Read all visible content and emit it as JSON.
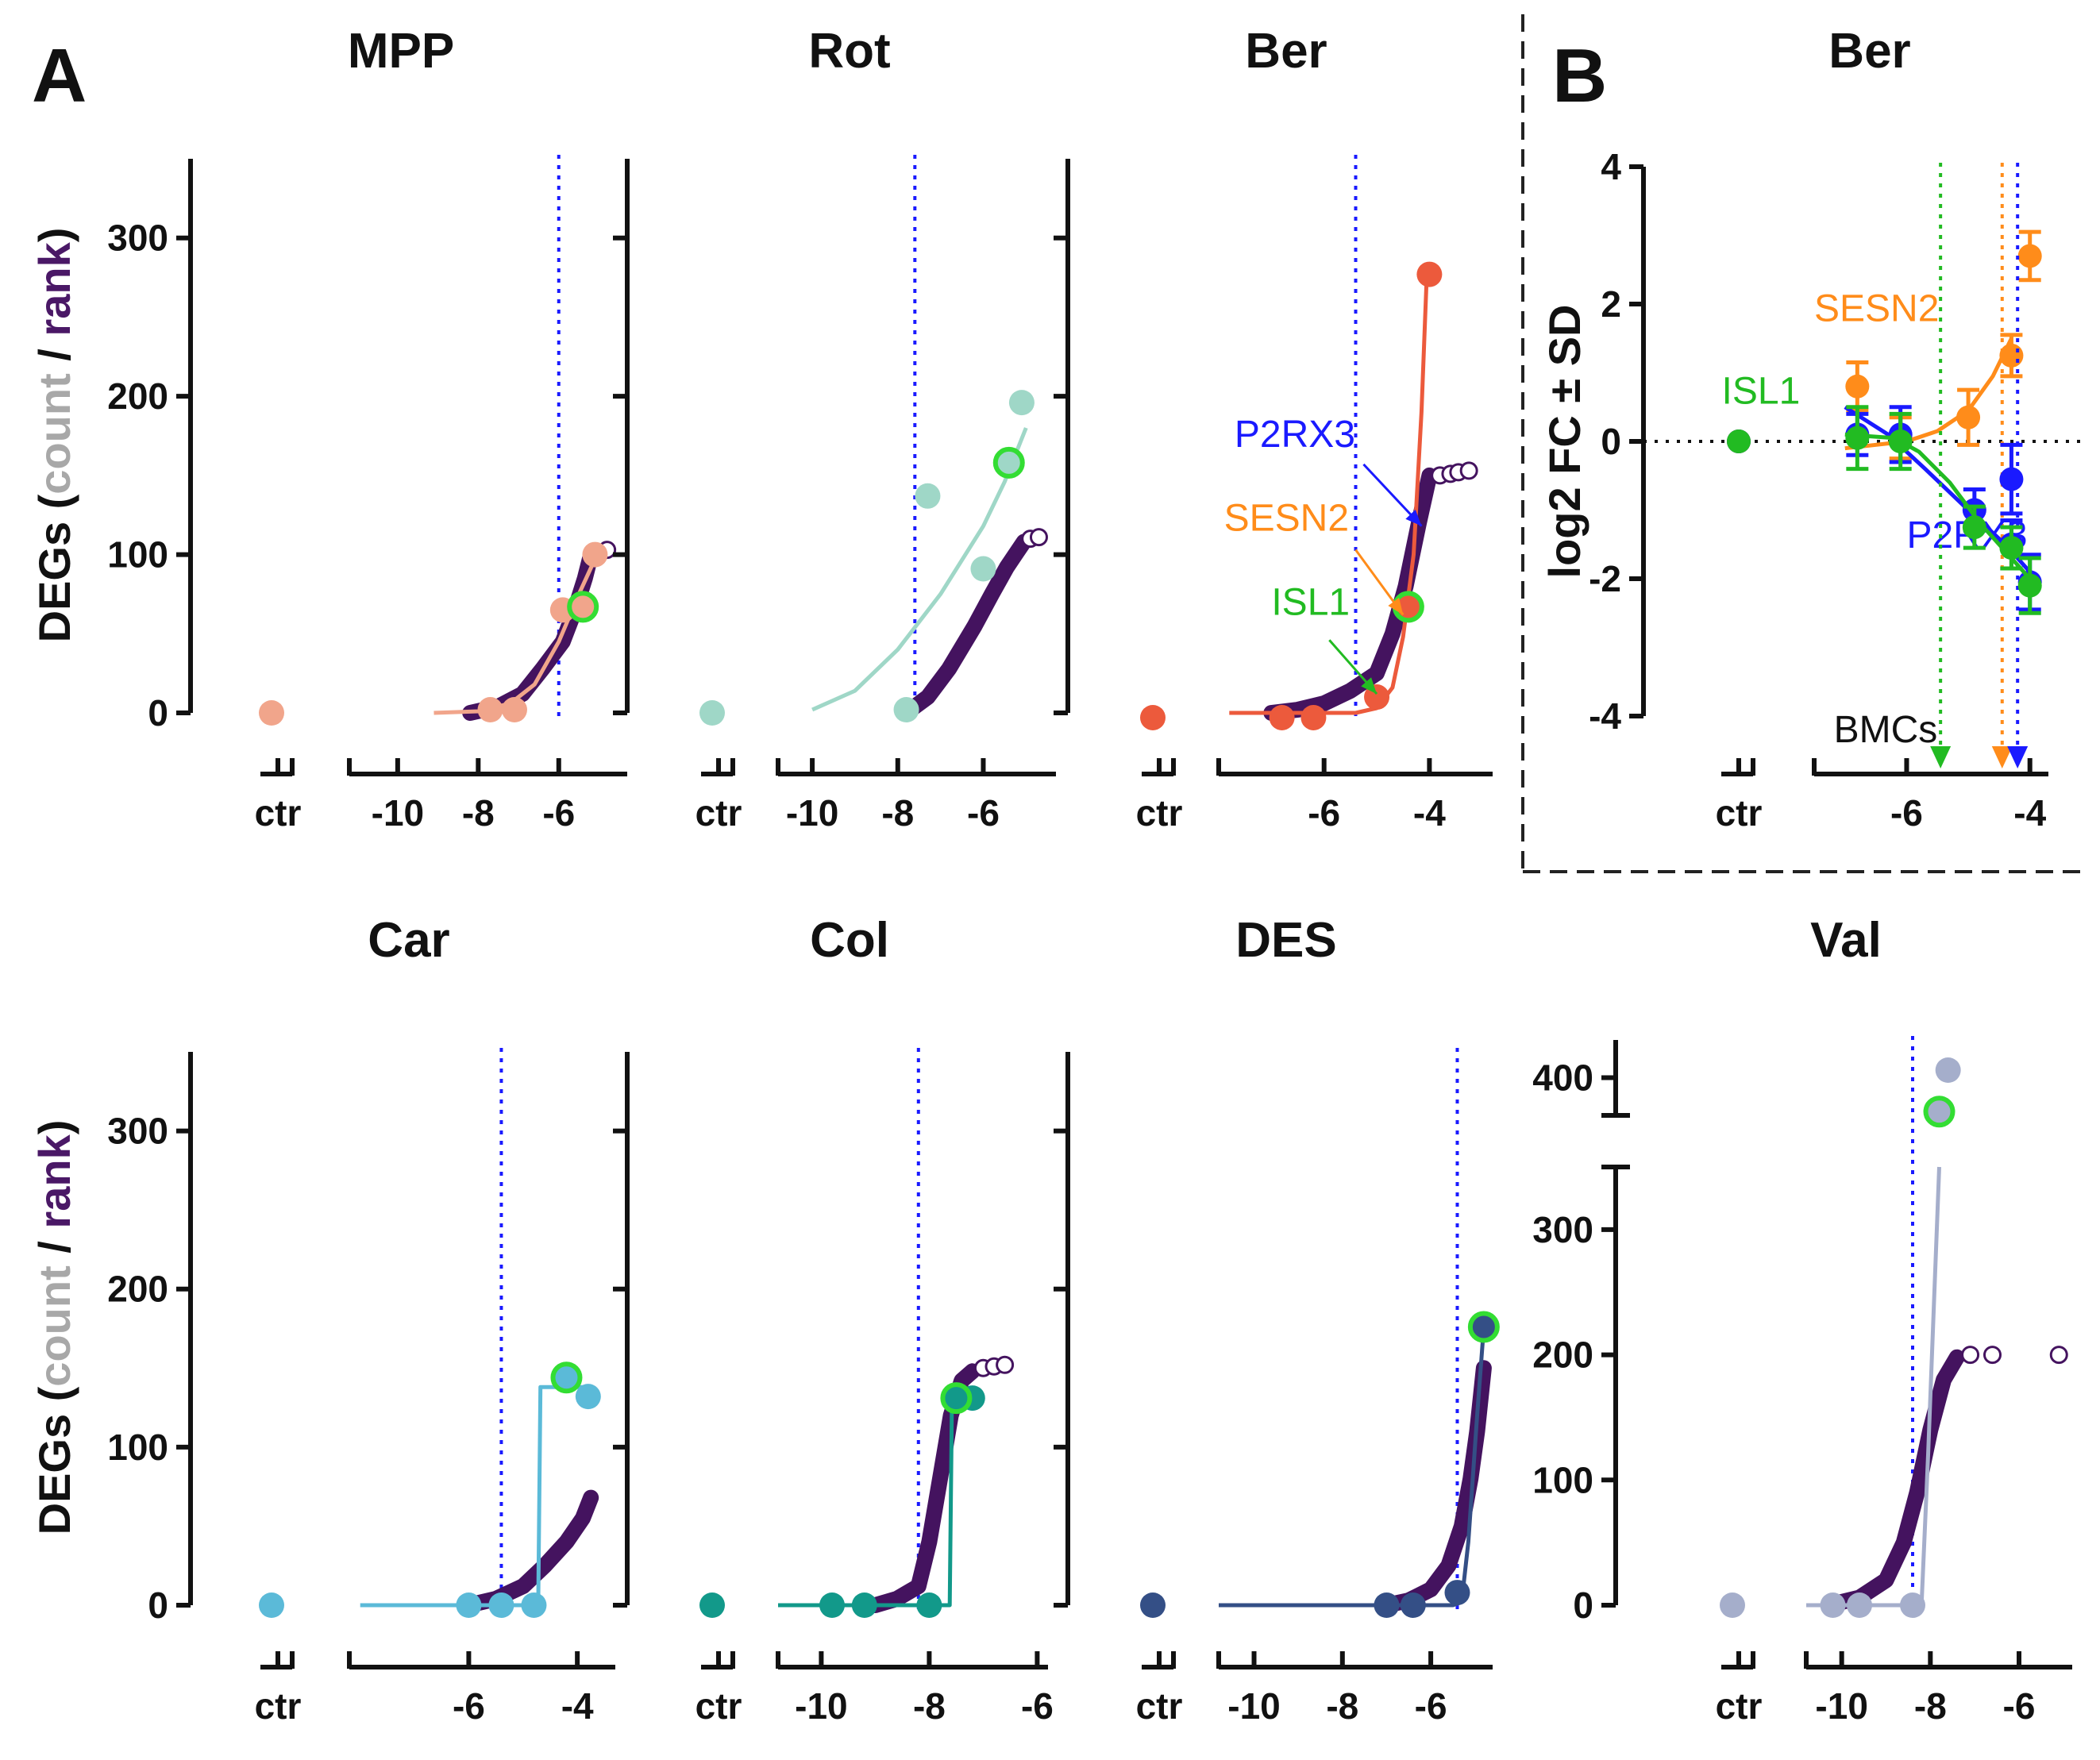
{
  "panel_labels": {
    "a": "A",
    "b": "B"
  },
  "y_label_parts": [
    "DEGs (",
    "count",
    " / ",
    "rank",
    ")"
  ],
  "y_label_colors": {
    "prefix": "#111111",
    "count": "#a8a8a8",
    "rank": "#4a1866"
  },
  "ctr_label": "ctr",
  "threshold_color": "#1a1aff",
  "rank_color": "#44135f",
  "highlight_color": "#33dd33",
  "chart_data": [
    {
      "type": "scatter",
      "title": "MPP",
      "color": "#f1a58b",
      "xlim": [
        -11.2,
        -4.3
      ],
      "ylim": [
        0,
        350
      ],
      "xticks": [
        -10,
        -8,
        -6
      ],
      "yticks": [
        0,
        100,
        200,
        300
      ],
      "y_tick_labels": true,
      "vline": -6.0,
      "ctr_value": 0,
      "points": [
        [
          -7.7,
          2
        ],
        [
          -7.1,
          2
        ],
        [
          -5.9,
          65
        ],
        [
          -5.1,
          100
        ]
      ],
      "highlight": [
        -5.4,
        67
      ],
      "curve": [
        [
          -9.1,
          0
        ],
        [
          -8.0,
          1
        ],
        [
          -7.2,
          6
        ],
        [
          -6.6,
          18
        ],
        [
          -6.0,
          45
        ],
        [
          -5.5,
          75
        ],
        [
          -5.05,
          100
        ]
      ],
      "rank_curve": [
        [
          -8.2,
          0
        ],
        [
          -7.5,
          4
        ],
        [
          -6.9,
          12
        ],
        [
          -6.4,
          28
        ],
        [
          -5.9,
          45
        ],
        [
          -5.6,
          65
        ],
        [
          -5.35,
          85
        ],
        [
          -5.2,
          100
        ]
      ],
      "rank_tail": [
        [
          -4.8,
          103
        ]
      ]
    },
    {
      "type": "scatter",
      "title": "Rot",
      "color": "#9fd7c7",
      "xlim": [
        -10.8,
        -4.3
      ],
      "ylim": [
        0,
        350
      ],
      "xticks": [
        -10,
        -8,
        -6
      ],
      "yticks": [
        0,
        100,
        200,
        300
      ],
      "y_tick_labels": false,
      "vline": -7.6,
      "ctr_value": 0,
      "points": [
        [
          -7.8,
          2
        ],
        [
          -7.3,
          137
        ],
        [
          -6.0,
          91
        ],
        [
          -5.1,
          196
        ]
      ],
      "highlight": [
        -5.4,
        158
      ],
      "curve": [
        [
          -10.0,
          2
        ],
        [
          -9.0,
          14
        ],
        [
          -8.0,
          40
        ],
        [
          -7.0,
          75
        ],
        [
          -6.0,
          118
        ],
        [
          -5.5,
          146
        ],
        [
          -5.0,
          180
        ]
      ],
      "rank_curve": [
        [
          -7.8,
          0
        ],
        [
          -7.3,
          10
        ],
        [
          -6.8,
          28
        ],
        [
          -6.2,
          55
        ],
        [
          -5.8,
          75
        ],
        [
          -5.45,
          92
        ],
        [
          -5.25,
          100
        ],
        [
          -5.05,
          108
        ]
      ],
      "rank_tail": [
        [
          -4.9,
          110
        ],
        [
          -4.7,
          111
        ]
      ]
    },
    {
      "type": "scatter",
      "title": "Ber",
      "color": "#ec5a3c",
      "xlim": [
        -8.0,
        -2.8
      ],
      "ylim": [
        0,
        350
      ],
      "xticks": [
        -6,
        -4
      ],
      "yticks": [
        0,
        100,
        200,
        300
      ],
      "y_tick_labels": false,
      "vline": -5.4,
      "ctr_value": -3,
      "points": [
        [
          -6.8,
          -3
        ],
        [
          -6.2,
          -3
        ],
        [
          -5.0,
          10
        ],
        [
          -4.4,
          66
        ],
        [
          -4.0,
          277
        ]
      ],
      "highlight": [
        -4.4,
        67
      ],
      "curve": [
        [
          -7.8,
          0
        ],
        [
          -5.4,
          0
        ],
        [
          -5.0,
          3
        ],
        [
          -4.7,
          16
        ],
        [
          -4.5,
          48
        ],
        [
          -4.3,
          100
        ],
        [
          -4.15,
          190
        ],
        [
          -4.05,
          277
        ]
      ],
      "rank_curve": [
        [
          -7.0,
          0
        ],
        [
          -6.5,
          2
        ],
        [
          -6.0,
          6
        ],
        [
          -5.5,
          14
        ],
        [
          -5.0,
          25
        ],
        [
          -4.7,
          50
        ],
        [
          -4.45,
          80
        ],
        [
          -4.2,
          120
        ],
        [
          -4.0,
          150
        ]
      ],
      "rank_tail": [
        [
          -3.8,
          150
        ],
        [
          -3.6,
          151
        ],
        [
          -3.45,
          152
        ],
        [
          -3.25,
          153
        ]
      ],
      "annotations": [
        {
          "label": "P2RX3",
          "color": "#1a1aff",
          "tx": -7.7,
          "ty": 168,
          "ax0": -5.25,
          "ay0": 157,
          "ax1": -4.15,
          "ay1": 118
        },
        {
          "label": "SESN2",
          "color": "#ff8c1a",
          "tx": -7.9,
          "ty": 115,
          "ax0": -5.4,
          "ay0": 103,
          "ax1": -4.5,
          "ay1": 62
        },
        {
          "label": "ISL1",
          "color": "#22bb22",
          "tx": -7.0,
          "ty": 62,
          "ax0": -5.9,
          "ay0": 46,
          "ax1": -5.0,
          "ay1": 12
        }
      ]
    },
    {
      "type": "scatter",
      "title": "Car",
      "color": "#5bbad8",
      "xlim": [
        -8.2,
        -3.3
      ],
      "ylim": [
        0,
        350
      ],
      "xticks": [
        -6,
        -4
      ],
      "yticks": [
        0,
        100,
        200,
        300
      ],
      "y_tick_labels": true,
      "vline": -5.4,
      "ctr_value": 0,
      "points": [
        [
          -6.0,
          0
        ],
        [
          -5.4,
          0
        ],
        [
          -4.8,
          0
        ],
        [
          -3.8,
          132
        ]
      ],
      "highlight": [
        -4.2,
        144
      ],
      "curve": [
        [
          -8.0,
          0
        ],
        [
          -4.72,
          0
        ],
        [
          -4.68,
          138
        ],
        [
          -3.8,
          138
        ]
      ],
      "rank_curve": [
        [
          -6.0,
          0
        ],
        [
          -5.5,
          4
        ],
        [
          -5.0,
          12
        ],
        [
          -4.6,
          25
        ],
        [
          -4.2,
          40
        ],
        [
          -3.9,
          55
        ],
        [
          -3.75,
          68
        ]
      ],
      "rank_tail": []
    },
    {
      "type": "scatter",
      "title": "Col",
      "color": "#12998a",
      "xlim": [
        -10.8,
        -5.8
      ],
      "ylim": [
        0,
        350
      ],
      "xticks": [
        -10,
        -8,
        -6
      ],
      "yticks": [
        0,
        100,
        200,
        300
      ],
      "y_tick_labels": false,
      "vline": -8.2,
      "ctr_value": 0,
      "points": [
        [
          -9.8,
          0
        ],
        [
          -9.2,
          0
        ],
        [
          -8.0,
          0
        ],
        [
          -7.2,
          131
        ]
      ],
      "highlight": [
        -7.5,
        131
      ],
      "curve": [
        [
          -10.8,
          0
        ],
        [
          -7.62,
          0
        ],
        [
          -7.58,
          131
        ],
        [
          -7.2,
          131
        ]
      ],
      "rank_curve": [
        [
          -9.0,
          0
        ],
        [
          -8.6,
          4
        ],
        [
          -8.2,
          12
        ],
        [
          -8.0,
          40
        ],
        [
          -7.8,
          80
        ],
        [
          -7.6,
          120
        ],
        [
          -7.4,
          142
        ],
        [
          -7.2,
          148
        ]
      ],
      "rank_tail": [
        [
          -7.0,
          150
        ],
        [
          -6.8,
          151
        ],
        [
          -6.6,
          152
        ]
      ]
    },
    {
      "type": "scatter",
      "title": "DES",
      "color": "#344f86",
      "xlim": [
        -10.8,
        -4.6
      ],
      "ylim": [
        0,
        350
      ],
      "xticks": [
        -10,
        -8,
        -6
      ],
      "yticks": [
        0,
        100,
        200,
        300
      ],
      "y_tick_labels": false,
      "vline": -5.4,
      "ctr_value": 0,
      "points": [
        [
          -7.0,
          0
        ],
        [
          -6.4,
          0
        ],
        [
          -5.4,
          8
        ],
        [
          -4.8,
          176
        ]
      ],
      "highlight": [
        -4.8,
        176
      ],
      "curve": [
        [
          -10.8,
          0
        ],
        [
          -5.5,
          0
        ],
        [
          -5.3,
          2
        ],
        [
          -5.15,
          40
        ],
        [
          -4.95,
          120
        ],
        [
          -4.8,
          176
        ]
      ],
      "rank_curve": [
        [
          -7.0,
          0
        ],
        [
          -6.5,
          3
        ],
        [
          -6.0,
          10
        ],
        [
          -5.6,
          25
        ],
        [
          -5.3,
          50
        ],
        [
          -5.1,
          80
        ],
        [
          -4.95,
          110
        ],
        [
          -4.8,
          150
        ]
      ],
      "rank_tail": []
    },
    {
      "type": "scatter",
      "title": "Val",
      "color": "#a5aecb",
      "xlim": [
        -10.8,
        -4.8
      ],
      "ylim": [
        0,
        430
      ],
      "xticks": [
        -10,
        -8,
        -6
      ],
      "yticks": [
        0,
        100,
        200,
        300,
        400
      ],
      "y_tick_labels": true,
      "vline": -8.4,
      "ctr_value": 0,
      "y_break": [
        350,
        370
      ],
      "points": [
        [
          -10.2,
          0
        ],
        [
          -9.6,
          0
        ],
        [
          -8.4,
          0
        ],
        [
          -7.6,
          406
        ]
      ],
      "highlight": [
        -7.8,
        373
      ],
      "curve": [
        [
          -10.8,
          0
        ],
        [
          -8.2,
          0
        ],
        [
          -8.05,
          120
        ],
        [
          -7.8,
          350
        ]
      ],
      "rank_curve": [
        [
          -10.3,
          0
        ],
        [
          -9.6,
          6
        ],
        [
          -9.0,
          20
        ],
        [
          -8.6,
          50
        ],
        [
          -8.3,
          90
        ],
        [
          -8.0,
          140
        ],
        [
          -7.7,
          180
        ],
        [
          -7.4,
          198
        ]
      ],
      "rank_tail": [
        [
          -7.1,
          200
        ],
        [
          -6.6,
          200
        ],
        [
          -5.1,
          200
        ]
      ]
    },
    {
      "type": "line",
      "title": "Ber",
      "xlim": [
        -7.5,
        -3.7
      ],
      "ylim": [
        -4,
        4
      ],
      "ylabel": "log2 FC ± SD",
      "xticks": [
        -6,
        -4
      ],
      "yticks": [
        -4,
        -2,
        0,
        2,
        4
      ],
      "bmc_label": "BMCs",
      "series": [
        {
          "name": "SESN2",
          "color": "#ff8c1a",
          "points": [
            [
              -6.8,
              0.8,
              0.35
            ],
            [
              -6.1,
              0.05,
              0.3
            ],
            [
              -5.0,
              0.35,
              0.4
            ],
            [
              -4.3,
              1.25,
              0.3
            ],
            [
              -4.0,
              2.7,
              0.35
            ]
          ],
          "ctr": [
            0,
            0.1
          ],
          "bmc": -4.45,
          "curve": [
            [
              -7.0,
              -0.1
            ],
            [
              -6.0,
              0.0
            ],
            [
              -5.5,
              0.15
            ],
            [
              -5.0,
              0.45
            ],
            [
              -4.6,
              0.95
            ],
            [
              -4.3,
              1.5
            ]
          ],
          "label_x": -7.5,
          "label_y": 1.75
        },
        {
          "name": "P2RX3",
          "color": "#1a1aff",
          "points": [
            [
              -6.8,
              0.1,
              0.3
            ],
            [
              -6.1,
              0.1,
              0.4
            ],
            [
              -4.9,
              -1.0,
              0.3
            ],
            [
              -4.3,
              -0.55,
              0.5
            ],
            [
              -4.3,
              -1.5,
              0.35
            ],
            [
              -4.0,
              -2.05,
              0.4
            ]
          ],
          "ctr": [
            0,
            0.1
          ],
          "bmc": -4.2,
          "curve": [
            [
              -7.0,
              0.5
            ],
            [
              -6.3,
              0.1
            ],
            [
              -5.7,
              -0.4
            ],
            [
              -5.0,
              -1.0
            ],
            [
              -4.4,
              -1.5
            ],
            [
              -4.0,
              -1.9
            ]
          ],
          "label_x": -6.0,
          "label_y": -1.55
        },
        {
          "name": "ISL1",
          "color": "#22bb22",
          "points": [
            [
              -6.8,
              0.05,
              0.45
            ],
            [
              -6.1,
              0.0,
              0.4
            ],
            [
              -4.9,
              -1.25,
              0.3
            ],
            [
              -4.3,
              -1.55,
              0.3
            ],
            [
              -4.0,
              -2.1,
              0.4
            ]
          ],
          "ctr": [
            0,
            0.1
          ],
          "bmc": -5.45,
          "curve": [
            [
              -7.0,
              0.1
            ],
            [
              -6.2,
              0.05
            ],
            [
              -5.8,
              -0.15
            ],
            [
              -5.3,
              -0.6
            ],
            [
              -4.8,
              -1.2
            ],
            [
              -4.3,
              -1.7
            ],
            [
              -4.0,
              -2.0
            ]
          ],
          "label_x": -9.0,
          "label_y": 0.55
        }
      ]
    }
  ]
}
